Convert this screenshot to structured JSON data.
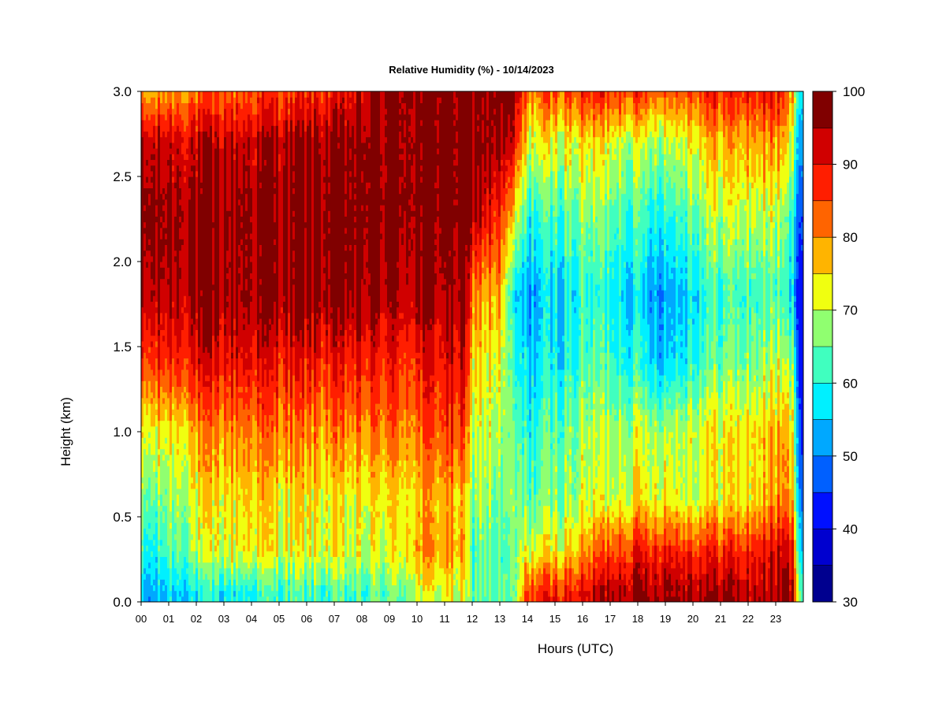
{
  "chart_data": {
    "type": "heatmap",
    "title": "Relative Humidity (%) - 10/14/2023",
    "xlabel": "Hours (UTC)",
    "ylabel": "Height (km)",
    "xlim": [
      0,
      24
    ],
    "ylim": [
      0.0,
      3.0
    ],
    "x_ticks": [
      "00",
      "01",
      "02",
      "03",
      "04",
      "05",
      "06",
      "07",
      "08",
      "09",
      "10",
      "11",
      "12",
      "13",
      "14",
      "15",
      "16",
      "17",
      "18",
      "19",
      "20",
      "21",
      "22",
      "23"
    ],
    "y_ticks": [
      "0.0",
      "0.5",
      "1.0",
      "1.5",
      "2.0",
      "2.5",
      "3.0"
    ],
    "colorbar": {
      "min": 30,
      "max": 100,
      "ticks": [
        "30",
        "40",
        "50",
        "60",
        "70",
        "80",
        "90",
        "100"
      ],
      "levels": [
        {
          "from": 30,
          "to": 35,
          "color": "#00008f"
        },
        {
          "from": 35,
          "to": 40,
          "color": "#0000cf"
        },
        {
          "from": 40,
          "to": 45,
          "color": "#0010ff"
        },
        {
          "from": 45,
          "to": 50,
          "color": "#0060ff"
        },
        {
          "from": 50,
          "to": 55,
          "color": "#00a8ff"
        },
        {
          "from": 55,
          "to": 60,
          "color": "#00f0ff"
        },
        {
          "from": 60,
          "to": 65,
          "color": "#40ffbf"
        },
        {
          "from": 65,
          "to": 70,
          "color": "#90ff70"
        },
        {
          "from": 70,
          "to": 75,
          "color": "#f0ff10"
        },
        {
          "from": 75,
          "to": 80,
          "color": "#ffb400"
        },
        {
          "from": 80,
          "to": 85,
          "color": "#ff6400"
        },
        {
          "from": 85,
          "to": 90,
          "color": "#ff1e00"
        },
        {
          "from": 90,
          "to": 95,
          "color": "#d00000"
        },
        {
          "from": 95,
          "to": 100,
          "color": "#800000"
        }
      ]
    },
    "heights_km": [
      0.05,
      0.3,
      0.6,
      1.0,
      1.4,
      1.8,
      2.25,
      2.7,
      3.0
    ],
    "columns": [
      {
        "hour": 0.0,
        "rh": [
          52,
          60,
          64,
          70,
          84,
          92,
          96,
          92,
          76
        ]
      },
      {
        "hour": 0.5,
        "rh": [
          52,
          58,
          64,
          72,
          86,
          94,
          97,
          93,
          78
        ]
      },
      {
        "hour": 1.0,
        "rh": [
          56,
          64,
          68,
          74,
          88,
          95,
          97,
          93,
          80
        ]
      },
      {
        "hour": 2.0,
        "rh": [
          58,
          68,
          72,
          78,
          90,
          96,
          97,
          93,
          82
        ]
      },
      {
        "hour": 3.0,
        "rh": [
          58,
          72,
          74,
          80,
          90,
          96,
          97,
          93,
          83
        ]
      },
      {
        "hour": 4.0,
        "rh": [
          60,
          74,
          76,
          82,
          91,
          96,
          97,
          94,
          85
        ]
      },
      {
        "hour": 5.0,
        "rh": [
          62,
          72,
          74,
          82,
          89,
          97,
          97,
          95,
          86
        ]
      },
      {
        "hour": 6.0,
        "rh": [
          62,
          72,
          74,
          80,
          89,
          97,
          98,
          96,
          87
        ]
      },
      {
        "hour": 7.0,
        "rh": [
          62,
          72,
          72,
          80,
          88,
          97,
          98,
          96,
          88
        ]
      },
      {
        "hour": 8.0,
        "rh": [
          62,
          70,
          72,
          80,
          88,
          96,
          98,
          97,
          92
        ]
      },
      {
        "hour": 9.0,
        "rh": [
          64,
          72,
          74,
          82,
          88,
          95,
          98,
          97,
          97
        ]
      },
      {
        "hour": 10.0,
        "rh": [
          70,
          78,
          76,
          82,
          88,
          95,
          98,
          98,
          98
        ]
      },
      {
        "hour": 11.0,
        "rh": [
          72,
          80,
          78,
          86,
          90,
          96,
          98,
          98,
          98
        ]
      },
      {
        "hour": 11.7,
        "rh": [
          70,
          76,
          74,
          84,
          90,
          96,
          98,
          98,
          98
        ]
      },
      {
        "hour": 12.0,
        "rh": [
          64,
          62,
          66,
          70,
          76,
          82,
          96,
          98,
          98
        ]
      },
      {
        "hour": 12.4,
        "rh": [
          66,
          66,
          70,
          72,
          74,
          78,
          92,
          98,
          98
        ]
      },
      {
        "hour": 13.0,
        "rh": [
          64,
          62,
          64,
          68,
          72,
          78,
          86,
          96,
          98
        ]
      },
      {
        "hour": 13.5,
        "rh": [
          62,
          64,
          66,
          64,
          60,
          56,
          72,
          90,
          96
        ]
      },
      {
        "hour": 14.0,
        "rh": [
          86,
          72,
          64,
          60,
          56,
          52,
          60,
          72,
          82
        ]
      },
      {
        "hour": 15.0,
        "rh": [
          88,
          74,
          66,
          64,
          58,
          56,
          62,
          72,
          84
        ]
      },
      {
        "hour": 16.0,
        "rh": [
          90,
          78,
          70,
          68,
          62,
          60,
          66,
          74,
          86
        ]
      },
      {
        "hour": 17.0,
        "rh": [
          96,
          86,
          72,
          70,
          64,
          60,
          66,
          74,
          88
        ]
      },
      {
        "hour": 18.0,
        "rh": [
          97,
          88,
          74,
          70,
          60,
          56,
          62,
          70,
          86
        ]
      },
      {
        "hour": 19.0,
        "rh": [
          97,
          90,
          74,
          70,
          56,
          52,
          60,
          70,
          84
        ]
      },
      {
        "hour": 20.0,
        "rh": [
          96,
          88,
          72,
          72,
          62,
          58,
          66,
          74,
          86
        ]
      },
      {
        "hour": 21.0,
        "rh": [
          96,
          88,
          74,
          74,
          66,
          62,
          70,
          78,
          88
        ]
      },
      {
        "hour": 22.0,
        "rh": [
          94,
          88,
          74,
          74,
          66,
          62,
          70,
          78,
          88
        ]
      },
      {
        "hour": 23.0,
        "rh": [
          95,
          92,
          80,
          78,
          70,
          64,
          70,
          80,
          90
        ]
      },
      {
        "hour": 23.6,
        "rh": [
          94,
          90,
          78,
          74,
          66,
          56,
          60,
          70,
          78
        ]
      },
      {
        "hour": 24.0,
        "rh": [
          60,
          50,
          44,
          40,
          38,
          40,
          44,
          50,
          56
        ]
      }
    ],
    "grid": false,
    "legend": "colorbar-right"
  }
}
